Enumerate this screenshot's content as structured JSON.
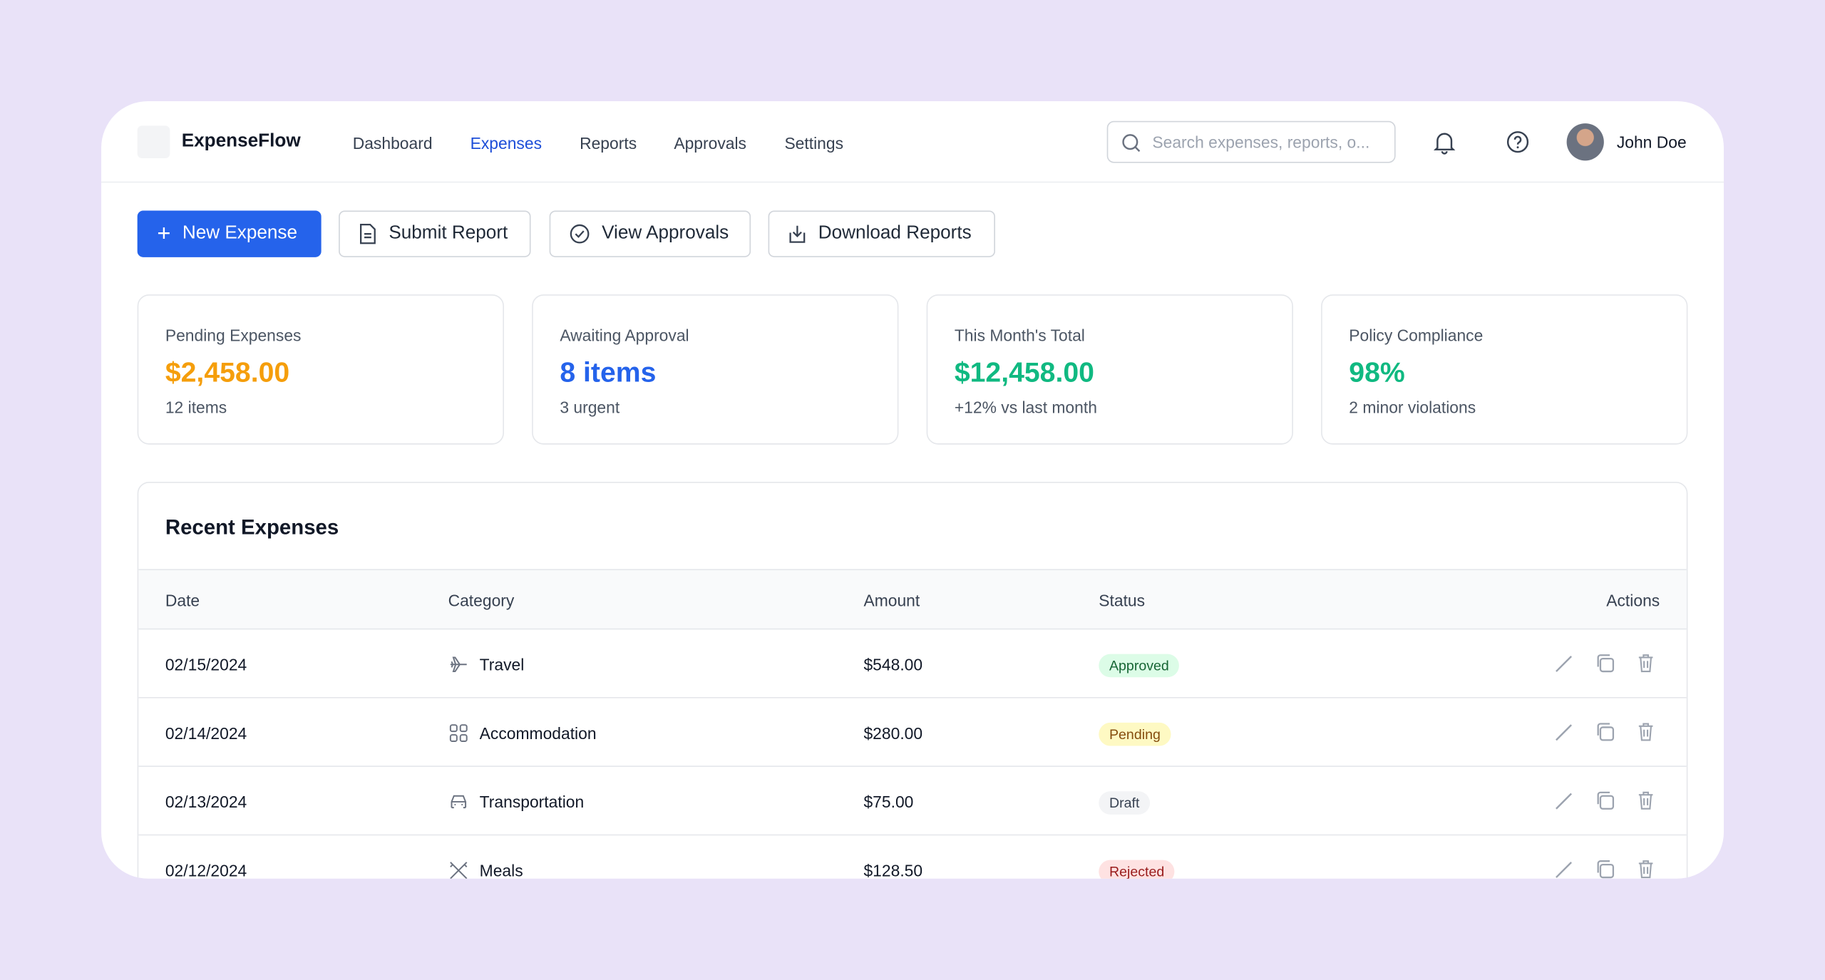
{
  "header": {
    "brand": "ExpenseFlow",
    "nav": [
      "Dashboard",
      "Expenses",
      "Reports",
      "Approvals",
      "Settings"
    ],
    "search_placeholder": "Search expenses, reports, o...",
    "user": "John Doe"
  },
  "actions": [
    "New Expense",
    "Submit Report",
    "View Approvals",
    "Download Reports"
  ],
  "stats": [
    {
      "label": "Pending Expenses",
      "value": "$2,458.00",
      "note": "12 items"
    },
    {
      "label": "Awaiting Approval",
      "value": "8 items",
      "note": "3 urgent"
    },
    {
      "label": "This Month's Total",
      "value": "$12,458.00",
      "note": "+12% vs last month"
    },
    {
      "label": "Policy Compliance",
      "value": "98%",
      "note": "2 minor violations"
    }
  ],
  "table": {
    "title": "Recent Expenses",
    "columns": [
      "Date",
      "Category",
      "Amount",
      "Status",
      "Actions"
    ],
    "rows": [
      [
        "02/15/2024",
        "Travel",
        "$548.00",
        "Approved"
      ],
      [
        "02/14/2024",
        "Accommodation",
        "$280.00",
        "Pending"
      ],
      [
        "02/13/2024",
        "Transportation",
        "$75.00",
        "Draft"
      ],
      [
        "02/12/2024",
        "Meals",
        "$128.50",
        "Rejected"
      ]
    ]
  }
}
